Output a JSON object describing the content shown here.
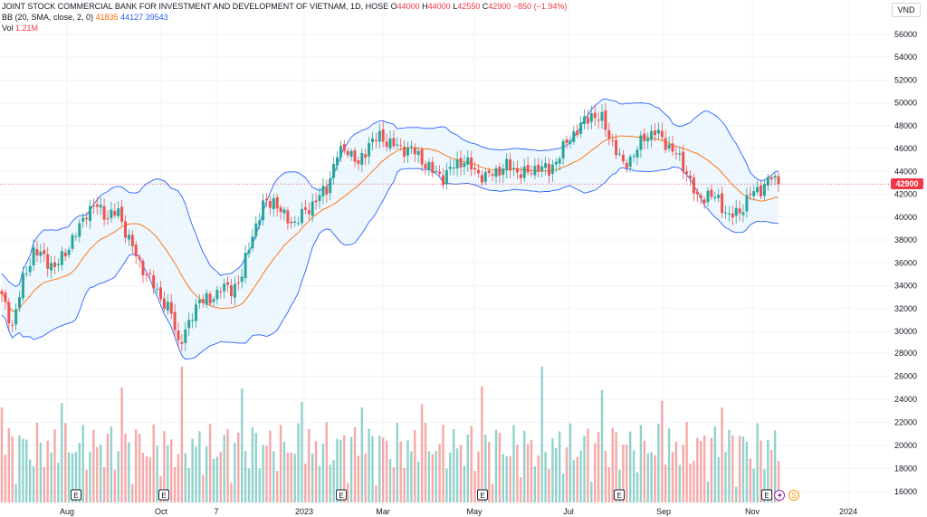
{
  "legend": {
    "symbol": "JOINT STOCK COMMERCIAL BANK FOR INVESTMENT AND DEVELOPMENT OF VIETNAM, 1D, HOSE",
    "open_label": "O",
    "open": "44000",
    "high_label": "H",
    "high": "44000",
    "low_label": "L",
    "low": "42550",
    "close_label": "C",
    "close": "42900",
    "change": "−850 (−1.94%)",
    "bb_label": "BB (20, SMA, close, 2, 0)",
    "bb_mid": "41835",
    "bb_upper": "44127",
    "bb_lower": "39543",
    "vol_label": "Vol",
    "vol_value": "1.21M"
  },
  "currency": "VND",
  "last_price_tag": "42900",
  "colors": {
    "up": "#26a69a",
    "down": "#ef5350",
    "band": "#2962ff",
    "basis": "#ff6d00",
    "fill": "#e3f2fd",
    "price_tag": "#f23645"
  },
  "event_markers": {
    "earnings_icon": "E",
    "earnings_months": [
      "Aug",
      "Oct",
      "2023",
      "May",
      "Jul",
      "Nov"
    ],
    "other_icons": [
      "lightning-icon",
      "dividend-icon"
    ],
    "dividend_letter": "S"
  },
  "chart_data": {
    "type": "candlestick",
    "title": "JOINT STOCK COMMERCIAL BANK FOR INVESTMENT AND DEVELOPMENT OF VIETNAM, 1D, HOSE",
    "y_price_ticks": [
      30000,
      32000,
      34000,
      36000,
      38000,
      40000,
      42000,
      44000,
      46000,
      48000,
      50000,
      52000,
      54000,
      56000
    ],
    "y_volume_axis_labels": [
      16000,
      18000,
      20000,
      22000,
      24000,
      26000,
      28000
    ],
    "x_ticks": [
      "Aug",
      "Oct",
      "7",
      "2023",
      "Mar",
      "May",
      "Jul",
      "Sep",
      "Nov",
      "2024"
    ],
    "price_range": [
      28000,
      57000
    ],
    "last_price": 42900,
    "close_path": [
      [
        0,
        33000
      ],
      [
        3,
        30500
      ],
      [
        6,
        34500
      ],
      [
        9,
        37000
      ],
      [
        12,
        36500
      ],
      [
        15,
        35500
      ],
      [
        18,
        37000
      ],
      [
        21,
        38500
      ],
      [
        24,
        40500
      ],
      [
        27,
        41000
      ],
      [
        30,
        40000
      ],
      [
        33,
        40500
      ],
      [
        36,
        38000
      ],
      [
        39,
        36000
      ],
      [
        42,
        34500
      ],
      [
        45,
        33000
      ],
      [
        48,
        31500
      ],
      [
        50,
        29000
      ],
      [
        53,
        30500
      ],
      [
        56,
        33000
      ],
      [
        59,
        32500
      ],
      [
        62,
        34000
      ],
      [
        65,
        33500
      ],
      [
        68,
        35000
      ],
      [
        71,
        38500
      ],
      [
        74,
        41000
      ],
      [
        77,
        41500
      ],
      [
        80,
        40000
      ],
      [
        83,
        39500
      ],
      [
        86,
        40500
      ],
      [
        89,
        41500
      ],
      [
        92,
        42500
      ],
      [
        95,
        45500
      ],
      [
        98,
        46000
      ],
      [
        101,
        44500
      ],
      [
        104,
        46500
      ],
      [
        107,
        47000
      ],
      [
        110,
        46500
      ],
      [
        113,
        46000
      ],
      [
        116,
        46000
      ],
      [
        119,
        45000
      ],
      [
        122,
        44000
      ],
      [
        125,
        43500
      ],
      [
        128,
        44500
      ],
      [
        131,
        45000
      ],
      [
        134,
        44000
      ],
      [
        137,
        43500
      ],
      [
        140,
        44000
      ],
      [
        143,
        44500
      ],
      [
        146,
        44000
      ],
      [
        149,
        43800
      ],
      [
        152,
        44500
      ],
      [
        155,
        44000
      ],
      [
        158,
        45500
      ],
      [
        161,
        47000
      ],
      [
        164,
        48000
      ],
      [
        167,
        49000
      ],
      [
        170,
        48500
      ],
      [
        173,
        46500
      ],
      [
        176,
        44500
      ],
      [
        179,
        45500
      ],
      [
        182,
        47000
      ],
      [
        185,
        47500
      ],
      [
        188,
        46500
      ],
      [
        191,
        45500
      ],
      [
        194,
        44000
      ],
      [
        197,
        41500
      ],
      [
        200,
        42000
      ],
      [
        203,
        41500
      ],
      [
        206,
        40000
      ],
      [
        209,
        40500
      ],
      [
        212,
        42000
      ],
      [
        215,
        42500
      ],
      [
        218,
        43500
      ],
      [
        220,
        42900
      ]
    ],
    "bollinger": {
      "period": 20,
      "mult": 2,
      "last_mid": 41835,
      "last_upper": 44127,
      "last_lower": 39543
    },
    "volume": {
      "last": "1.21M"
    }
  }
}
